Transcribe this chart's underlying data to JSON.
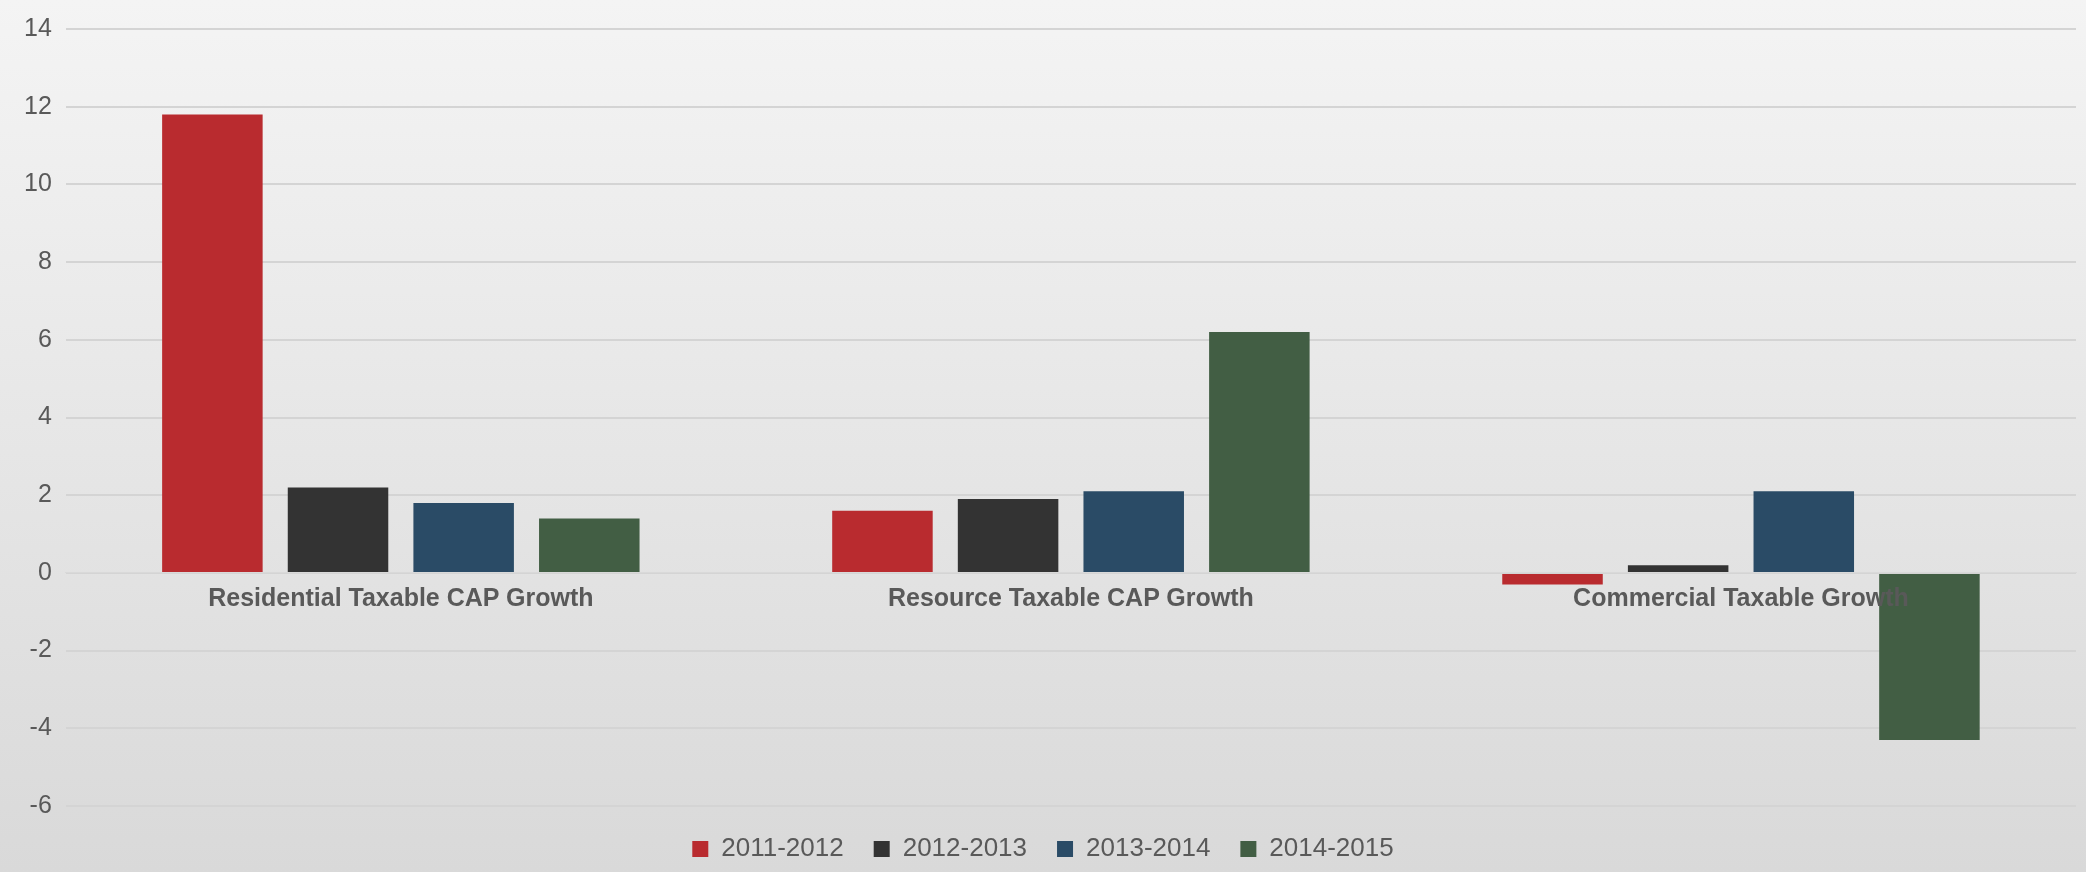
{
  "chart_data": {
    "type": "bar",
    "categories": [
      "Residential Taxable CAP Growth",
      "Resource Taxable CAP Growth",
      "Commercial Taxable Growth"
    ],
    "series": [
      {
        "name": "2011-2012",
        "color": "#b92b2f",
        "values": [
          11.8,
          1.6,
          -0.3
        ]
      },
      {
        "name": "2012-2013",
        "color": "#333333",
        "values": [
          2.2,
          1.9,
          0.2
        ]
      },
      {
        "name": "2013-2014",
        "color": "#2a4b66",
        "values": [
          1.8,
          2.1,
          2.1
        ]
      },
      {
        "name": "2014-2015",
        "color": "#425e44",
        "values": [
          1.4,
          6.2,
          -4.3
        ]
      }
    ],
    "ylim": [
      -6,
      14
    ],
    "yticks": [
      -6,
      -4,
      -2,
      0,
      2,
      4,
      6,
      8,
      10,
      12,
      14
    ],
    "grid": "y",
    "legend": "bottom"
  }
}
